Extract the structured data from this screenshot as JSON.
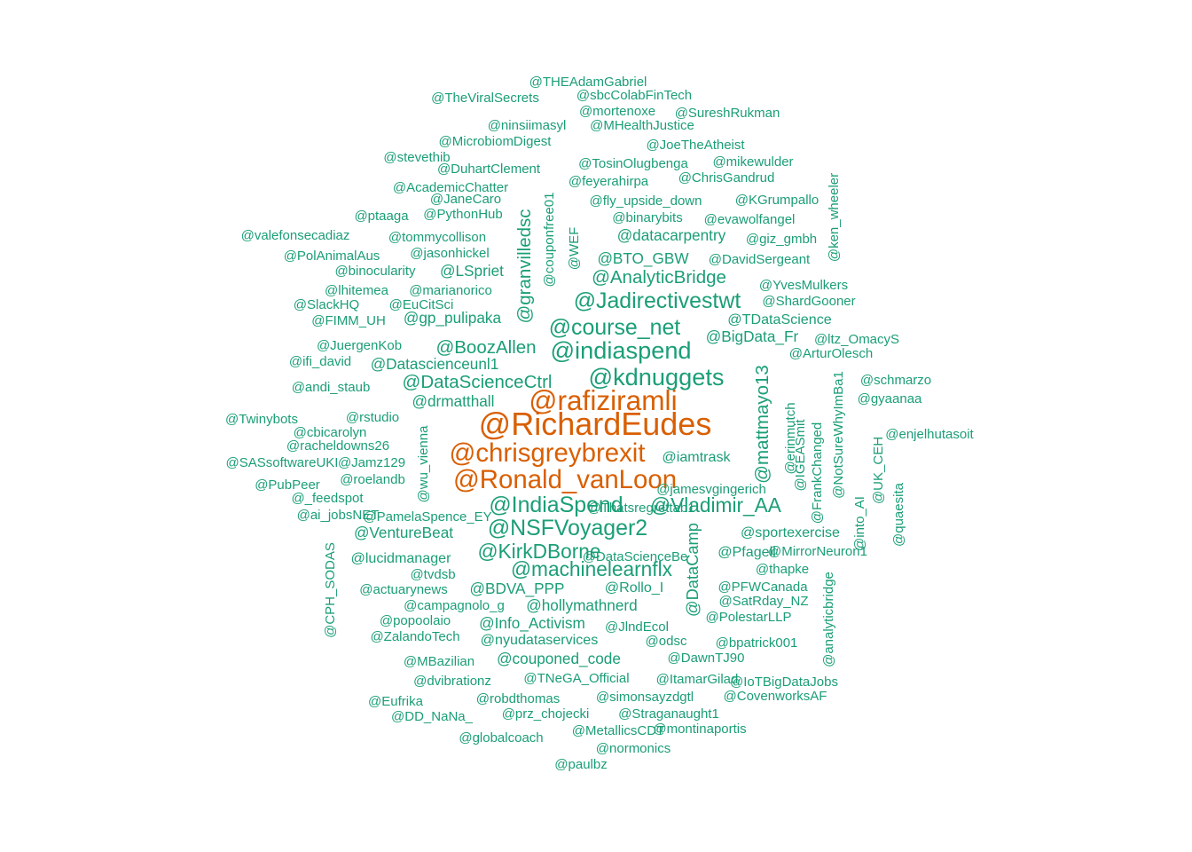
{
  "colors": {
    "primary": "#1b9e77",
    "highlight": "#d95f02",
    "background": "#ffffff"
  },
  "words": [
    {
      "text": "@RichardEudes",
      "weight": 34,
      "color": "highlight"
    },
    {
      "text": "@rafiziramli",
      "weight": 30,
      "color": "highlight"
    },
    {
      "text": "@chrisgreybrexit",
      "weight": 28,
      "color": "highlight"
    },
    {
      "text": "@Ronald_vanLoon",
      "weight": 28,
      "color": "highlight"
    },
    {
      "text": "@kdnuggets",
      "weight": 26,
      "color": "primary"
    },
    {
      "text": "@indiaspend",
      "weight": 26,
      "color": "primary"
    },
    {
      "text": "@course_net",
      "weight": 24,
      "color": "primary"
    },
    {
      "text": "@Jadirectivestwt",
      "weight": 24,
      "color": "primary"
    },
    {
      "text": "@IndiaSpend",
      "weight": 24,
      "color": "primary"
    },
    {
      "text": "@Vladimir_AA",
      "weight": 22,
      "color": "primary"
    },
    {
      "text": "@NSFVoyager2",
      "weight": 24,
      "color": "primary"
    },
    {
      "text": "@KirkDBorne",
      "weight": 22,
      "color": "primary"
    },
    {
      "text": "@machinelearnflx",
      "weight": 22,
      "color": "primary"
    },
    {
      "text": "@DataScienceCtrl",
      "weight": 20,
      "color": "primary"
    },
    {
      "text": "@AnalyticBridge",
      "weight": 20,
      "color": "primary"
    },
    {
      "text": "@BoozAllen",
      "weight": 20,
      "color": "primary"
    },
    {
      "text": "@granvilledsc",
      "weight": 20,
      "color": "primary"
    },
    {
      "text": "@mattmayo13",
      "weight": 20,
      "color": "primary"
    },
    {
      "text": "@DataCamp",
      "weight": 18,
      "color": "primary"
    },
    {
      "text": "@Datascienceunl1",
      "weight": 17,
      "color": "primary"
    },
    {
      "text": "@BTO_GBW",
      "weight": 17,
      "color": "primary"
    },
    {
      "text": "@LSpriet",
      "weight": 17,
      "color": "primary"
    },
    {
      "text": "@drmatthall",
      "weight": 17,
      "color": "primary"
    },
    {
      "text": "@hollymathnerd",
      "weight": 17,
      "color": "primary"
    },
    {
      "text": "@VentureBeat",
      "weight": 17,
      "color": "primary"
    },
    {
      "text": "@BDVA_PPP",
      "weight": 17,
      "color": "primary"
    },
    {
      "text": "@Info_Activism",
      "weight": 17,
      "color": "primary"
    },
    {
      "text": "@couponed_code",
      "weight": 17,
      "color": "primary"
    },
    {
      "text": "@datacarpentry",
      "weight": 17,
      "color": "primary"
    },
    {
      "text": "@BigData_Fr",
      "weight": 17,
      "color": "primary"
    },
    {
      "text": "@gp_pulipaka",
      "weight": 17,
      "color": "primary"
    },
    {
      "text": "@sportexercise",
      "weight": 16,
      "color": "primary"
    },
    {
      "text": "@iamtrask",
      "weight": 16,
      "color": "primary"
    },
    {
      "text": "@Pfagell",
      "weight": 16,
      "color": "primary"
    },
    {
      "text": "@Rollo_I",
      "weight": 16,
      "color": "primary"
    },
    {
      "text": "@nyudataservices",
      "weight": 16,
      "color": "primary"
    },
    {
      "text": "@campagnolo_g",
      "weight": 15,
      "color": "primary"
    },
    {
      "text": "@lucidmanager",
      "weight": 16,
      "color": "primary"
    },
    {
      "text": "@erinmutch",
      "weight": 15,
      "color": "primary"
    },
    {
      "text": "@ken_wheeler",
      "weight": 15,
      "color": "primary"
    },
    {
      "text": "@THEAdamGabriel",
      "weight": 15,
      "color": "primary"
    },
    {
      "text": "@TheViralSecrets",
      "weight": 15,
      "color": "primary"
    },
    {
      "text": "@sbcColabFinTech",
      "weight": 15,
      "color": "primary"
    },
    {
      "text": "@mortenoxe",
      "weight": 15,
      "color": "primary"
    },
    {
      "text": "@SureshRukman",
      "weight": 15,
      "color": "primary"
    },
    {
      "text": "@ninsiimasyl",
      "weight": 15,
      "color": "primary"
    },
    {
      "text": "@MHealthJustice",
      "weight": 15,
      "color": "primary"
    },
    {
      "text": "@MicrobiomDigest",
      "weight": 15,
      "color": "primary"
    },
    {
      "text": "@JoeTheAtheist",
      "weight": 15,
      "color": "primary"
    },
    {
      "text": "@stevethib",
      "weight": 15,
      "color": "primary"
    },
    {
      "text": "@DuhartClement",
      "weight": 15,
      "color": "primary"
    },
    {
      "text": "@TosinOlugbenga",
      "weight": 15,
      "color": "primary"
    },
    {
      "text": "@mikewulder",
      "weight": 15,
      "color": "primary"
    },
    {
      "text": "@feyerahirpa",
      "weight": 15,
      "color": "primary"
    },
    {
      "text": "@ChrisGandrud",
      "weight": 15,
      "color": "primary"
    },
    {
      "text": "@AcademicChatter",
      "weight": 15,
      "color": "primary"
    },
    {
      "text": "@JaneCaro",
      "weight": 15,
      "color": "primary"
    },
    {
      "text": "@couponfree01",
      "weight": 15,
      "color": "primary"
    },
    {
      "text": "@fly_upside_down",
      "weight": 15,
      "color": "primary"
    },
    {
      "text": "@KGrumpallo",
      "weight": 15,
      "color": "primary"
    },
    {
      "text": "@ptaaga",
      "weight": 15,
      "color": "primary"
    },
    {
      "text": "@PythonHub",
      "weight": 15,
      "color": "primary"
    },
    {
      "text": "@binarybits",
      "weight": 15,
      "color": "primary"
    },
    {
      "text": "@evawolfangel",
      "weight": 15,
      "color": "primary"
    },
    {
      "text": "@valefonsecadiaz",
      "weight": 15,
      "color": "primary"
    },
    {
      "text": "@tommycollison",
      "weight": 15,
      "color": "primary"
    },
    {
      "text": "@WEF",
      "weight": 15,
      "color": "primary"
    },
    {
      "text": "@giz_gmbh",
      "weight": 15,
      "color": "primary"
    },
    {
      "text": "@PolAnimalAus",
      "weight": 15,
      "color": "primary"
    },
    {
      "text": "@jasonhickel",
      "weight": 15,
      "color": "primary"
    },
    {
      "text": "@DavidSergeant",
      "weight": 15,
      "color": "primary"
    },
    {
      "text": "@binocularity",
      "weight": 15,
      "color": "primary"
    },
    {
      "text": "@YvesMulkers",
      "weight": 15,
      "color": "primary"
    },
    {
      "text": "@lhitemea",
      "weight": 15,
      "color": "primary"
    },
    {
      "text": "@marianorico",
      "weight": 15,
      "color": "primary"
    },
    {
      "text": "@ShardGooner",
      "weight": 15,
      "color": "primary"
    },
    {
      "text": "@SlackHQ",
      "weight": 15,
      "color": "primary"
    },
    {
      "text": "@EuCitSci",
      "weight": 15,
      "color": "primary"
    },
    {
      "text": "@FIMM_UH",
      "weight": 15,
      "color": "primary"
    },
    {
      "text": "@TDataScience",
      "weight": 16,
      "color": "primary"
    },
    {
      "text": "@ltz_OmacyS",
      "weight": 15,
      "color": "primary"
    },
    {
      "text": "@JuergenKob",
      "weight": 15,
      "color": "primary"
    },
    {
      "text": "@ArturOlesch",
      "weight": 15,
      "color": "primary"
    },
    {
      "text": "@ifi_david",
      "weight": 15,
      "color": "primary"
    },
    {
      "text": "@schmarzo",
      "weight": 15,
      "color": "primary"
    },
    {
      "text": "@andi_staub",
      "weight": 15,
      "color": "primary"
    },
    {
      "text": "@NotSureWhyImBa1",
      "weight": 15,
      "color": "primary"
    },
    {
      "text": "@gyaanaa",
      "weight": 15,
      "color": "primary"
    },
    {
      "text": "@Twinybots",
      "weight": 15,
      "color": "primary"
    },
    {
      "text": "@rstudio",
      "weight": 15,
      "color": "primary"
    },
    {
      "text": "@wu_vienna",
      "weight": 15,
      "color": "primary"
    },
    {
      "text": "@IGEASmit",
      "weight": 15,
      "color": "primary"
    },
    {
      "text": "@enjelhutasoit",
      "weight": 15,
      "color": "primary"
    },
    {
      "text": "@cbicarolyn",
      "weight": 15,
      "color": "primary"
    },
    {
      "text": "@UK_CEH",
      "weight": 15,
      "color": "primary"
    },
    {
      "text": "@racheldowns26",
      "weight": 15,
      "color": "primary"
    },
    {
      "text": "@FrankChanged",
      "weight": 15,
      "color": "primary"
    },
    {
      "text": "@SASsoftwareUKI",
      "weight": 15,
      "color": "primary"
    },
    {
      "text": "@Jamz129",
      "weight": 15,
      "color": "primary"
    },
    {
      "text": "@PubPeer",
      "weight": 15,
      "color": "primary"
    },
    {
      "text": "@roelandb",
      "weight": 15,
      "color": "primary"
    },
    {
      "text": "@quaesita",
      "weight": 15,
      "color": "primary"
    },
    {
      "text": "@_feedspot",
      "weight": 15,
      "color": "primary"
    },
    {
      "text": "@jamesvgingerich",
      "weight": 15,
      "color": "primary"
    },
    {
      "text": "@ai_jobsNET",
      "weight": 15,
      "color": "primary"
    },
    {
      "text": "@into_AI",
      "weight": 15,
      "color": "primary"
    },
    {
      "text": "@CPH_SODAS",
      "weight": 15,
      "color": "primary"
    },
    {
      "text": "@DataScienceBe",
      "weight": 15,
      "color": "primary"
    },
    {
      "text": "@MirrorNeuron1",
      "weight": 15,
      "color": "primary"
    },
    {
      "text": "@tvdsb",
      "weight": 15,
      "color": "primary"
    },
    {
      "text": "@thapke",
      "weight": 15,
      "color": "primary"
    },
    {
      "text": "@actuarynews",
      "weight": 15,
      "color": "primary"
    },
    {
      "text": "@PFWCanada",
      "weight": 15,
      "color": "primary"
    },
    {
      "text": "@analyticbridge",
      "weight": 15,
      "color": "primary"
    },
    {
      "text": "@SatRday_NZ",
      "weight": 15,
      "color": "primary"
    },
    {
      "text": "@popoolaio",
      "weight": 15,
      "color": "primary"
    },
    {
      "text": "@PolestarLLP",
      "weight": 15,
      "color": "primary"
    },
    {
      "text": "@JlndEcol",
      "weight": 15,
      "color": "primary"
    },
    {
      "text": "@ZalandoTech",
      "weight": 15,
      "color": "primary"
    },
    {
      "text": "@odsc",
      "weight": 15,
      "color": "primary"
    },
    {
      "text": "@bpatrick001",
      "weight": 15,
      "color": "primary"
    },
    {
      "text": "@MBazilian",
      "weight": 15,
      "color": "primary"
    },
    {
      "text": "@DawnTJ90",
      "weight": 15,
      "color": "primary"
    },
    {
      "text": "@dvibrationz",
      "weight": 15,
      "color": "primary"
    },
    {
      "text": "@TNeGA_Official",
      "weight": 15,
      "color": "primary"
    },
    {
      "text": "@ItamarGilad",
      "weight": 15,
      "color": "primary"
    },
    {
      "text": "@IoTBigDataJobs",
      "weight": 15,
      "color": "primary"
    },
    {
      "text": "@Eufrika",
      "weight": 15,
      "color": "primary"
    },
    {
      "text": "@robdthomas",
      "weight": 15,
      "color": "primary"
    },
    {
      "text": "@simonsayzdgtl",
      "weight": 15,
      "color": "primary"
    },
    {
      "text": "@CovenworksAF",
      "weight": 15,
      "color": "primary"
    },
    {
      "text": "@DD_NaNa_",
      "weight": 15,
      "color": "primary"
    },
    {
      "text": "@prz_chojecki",
      "weight": 15,
      "color": "primary"
    },
    {
      "text": "@Straganaught1",
      "weight": 15,
      "color": "primary"
    },
    {
      "text": "@globalcoach",
      "weight": 15,
      "color": "primary"
    },
    {
      "text": "@MetallicsCDT",
      "weight": 15,
      "color": "primary"
    },
    {
      "text": "@montinaportis",
      "weight": 15,
      "color": "primary"
    },
    {
      "text": "@normonics",
      "weight": 15,
      "color": "primary"
    },
    {
      "text": "@paulbz",
      "weight": 15,
      "color": "primary"
    },
    {
      "text": "@PamelaSpence_EY",
      "weight": 15,
      "color": "primary"
    },
    {
      "text": "@Thatsregrettab1",
      "weight": 15,
      "color": "primary"
    },
    {
      "text": "@",
      "weight": 15,
      "color": "primary"
    },
    {
      "text": "@",
      "weight": 15,
      "color": "primary"
    }
  ]
}
